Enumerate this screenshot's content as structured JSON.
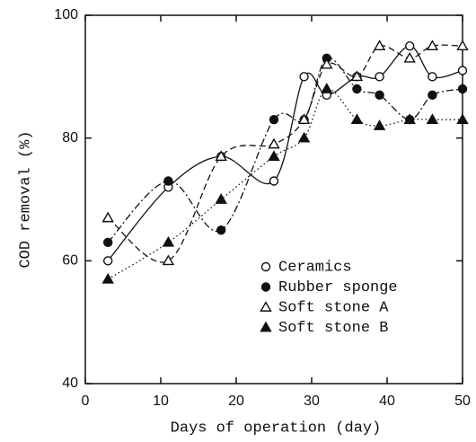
{
  "chart_data": {
    "type": "line",
    "xlabel": "Days of operation (day)",
    "ylabel": "COD removal (%)",
    "x": [
      3,
      11,
      18,
      25,
      29,
      32,
      36,
      39,
      43,
      46,
      50
    ],
    "series": [
      {
        "name": "Ceramics",
        "color": "#111111",
        "marker": "circle-open",
        "line_style": "solid",
        "values": [
          60,
          72,
          77,
          73,
          90,
          87,
          90,
          90,
          95,
          90,
          91
        ]
      },
      {
        "name": "Rubber sponge",
        "color": "#111111",
        "marker": "circle-filled",
        "line_style": "dashdot",
        "values": [
          63,
          73,
          65,
          83,
          83,
          93,
          88,
          87,
          83,
          87,
          88
        ]
      },
      {
        "name": "Soft stone A",
        "color": "#111111",
        "marker": "triangle-open",
        "line_style": "dashed",
        "values": [
          67,
          60,
          77,
          79,
          83,
          92,
          90,
          95,
          93,
          95,
          95
        ]
      },
      {
        "name": "Soft stone B",
        "color": "#111111",
        "marker": "triangle-filled",
        "line_style": "dotted",
        "values": [
          57,
          63,
          70,
          77,
          80,
          88,
          83,
          82,
          83,
          83,
          83
        ]
      }
    ],
    "xlim": [
      0,
      50
    ],
    "xticks": [
      0,
      10,
      20,
      30,
      40,
      50
    ],
    "ylim": [
      40,
      100
    ],
    "yticks": [
      40,
      60,
      80,
      100
    ],
    "legend": "lower right",
    "grid": false
  }
}
